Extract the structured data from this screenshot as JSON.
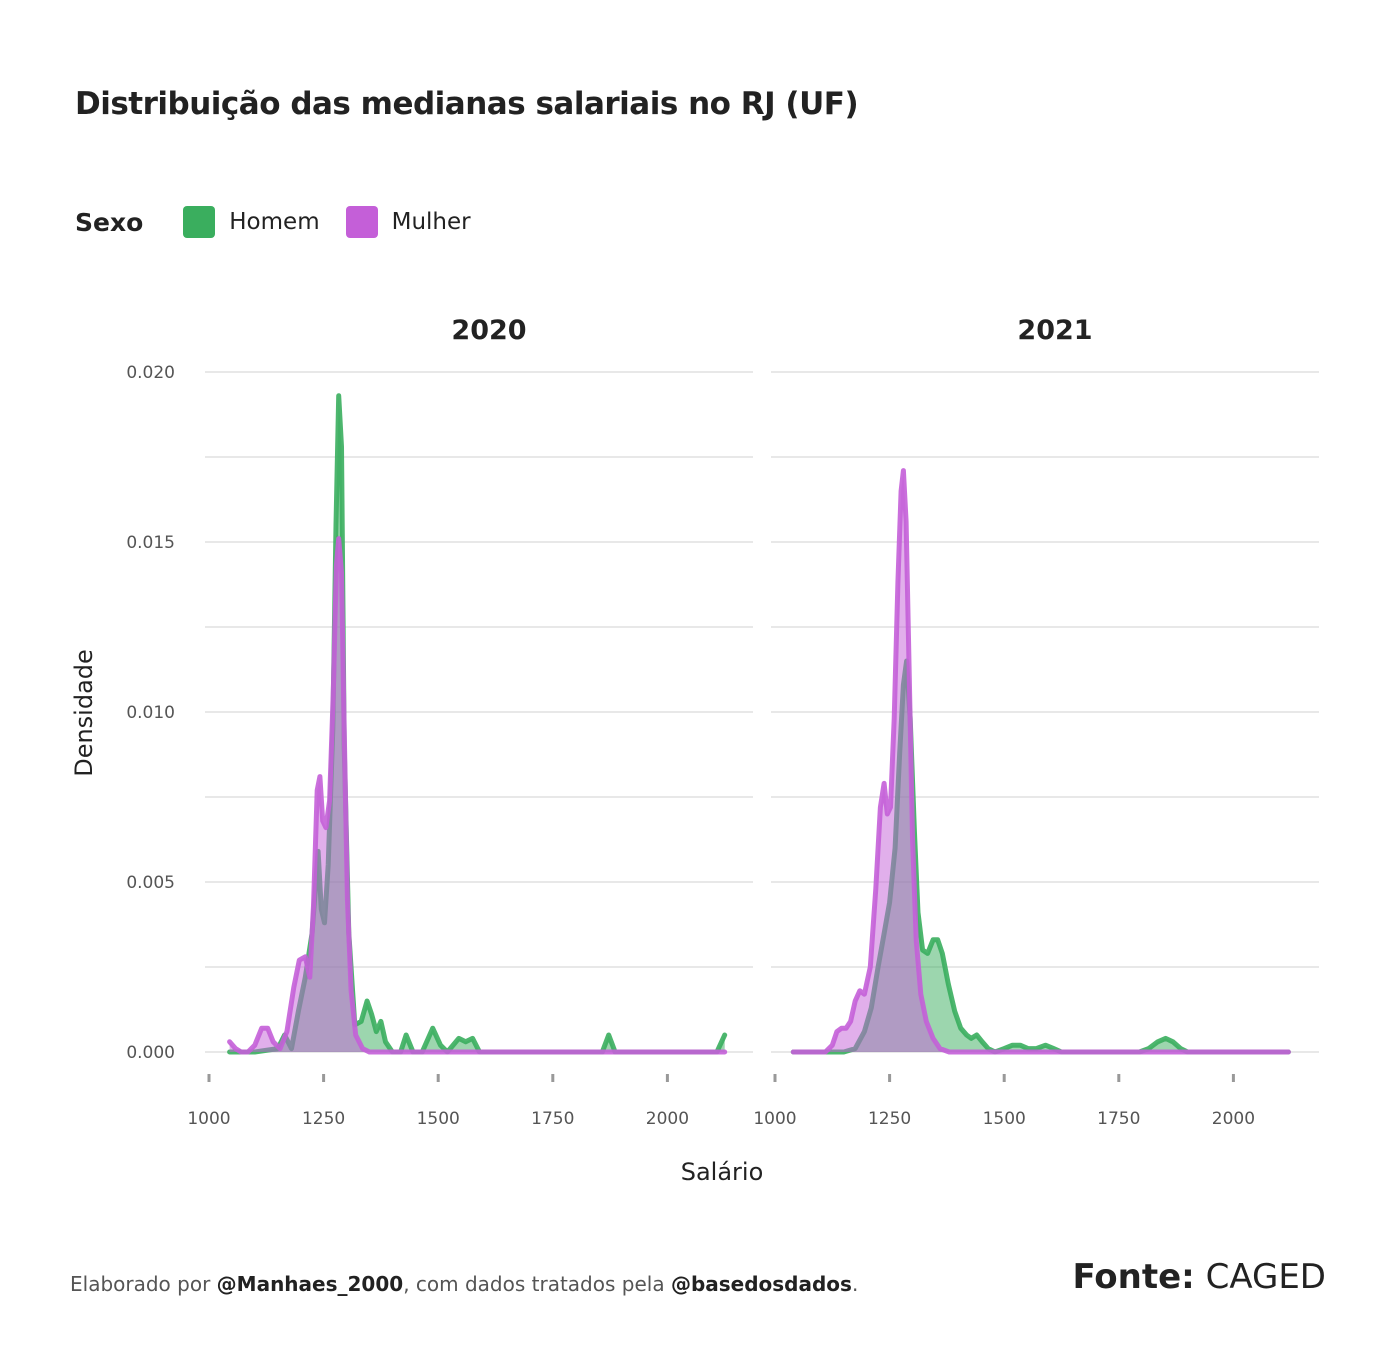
{
  "title": "Distribuição das medianas salariais no RJ (UF)",
  "legend": {
    "title": "Sexo",
    "items": [
      {
        "label": "Homem",
        "color": "#3aae5e"
      },
      {
        "label": "Mulher",
        "color": "#c45fd8"
      }
    ]
  },
  "footer": {
    "prefix": "Elaborado por ",
    "author": "@Manhaes_2000",
    "middle": ", com dados tratados pela ",
    "org": "@basedosdados",
    "suffix": ".",
    "source_label": "Fonte:",
    "source_value": "CAGED"
  },
  "chart_data": {
    "type": "area",
    "xlabel": "Salário",
    "ylabel": "Densidade",
    "xlim": [
      1000,
      2150
    ],
    "ylim": [
      0,
      0.02
    ],
    "xticks": [
      1000,
      1250,
      1500,
      1750,
      2000
    ],
    "yticks": [
      0.0,
      0.005,
      0.01,
      0.015,
      0.02
    ],
    "ytick_labels": [
      "0.000",
      "0.005",
      "0.010",
      "0.015",
      "0.020"
    ],
    "grid": true,
    "legend_position": "top-left",
    "facets": [
      {
        "title": "2020",
        "series": [
          {
            "name": "Homem",
            "color": "#3aae5e",
            "points": [
              [
                1045,
                0
              ],
              [
                1100,
                0
              ],
              [
                1150,
                0.0001
              ],
              [
                1165,
                0.0005
              ],
              [
                1180,
                0.0001
              ],
              [
                1195,
                0.0012
              ],
              [
                1210,
                0.0022
              ],
              [
                1225,
                0.0035
              ],
              [
                1238,
                0.0059
              ],
              [
                1245,
                0.0042
              ],
              [
                1252,
                0.0038
              ],
              [
                1260,
                0.0055
              ],
              [
                1270,
                0.0095
              ],
              [
                1277,
                0.0155
              ],
              [
                1283,
                0.0193
              ],
              [
                1289,
                0.0178
              ],
              [
                1295,
                0.009
              ],
              [
                1305,
                0.0035
              ],
              [
                1318,
                0.0008
              ],
              [
                1332,
                0.0009
              ],
              [
                1345,
                0.0015
              ],
              [
                1355,
                0.0011
              ],
              [
                1365,
                0.0006
              ],
              [
                1375,
                0.0009
              ],
              [
                1385,
                0.0003
              ],
              [
                1400,
                0
              ],
              [
                1418,
                0
              ],
              [
                1430,
                0.0005
              ],
              [
                1445,
                0
              ],
              [
                1465,
                0
              ],
              [
                1488,
                0.0007
              ],
              [
                1505,
                0.0002
              ],
              [
                1520,
                0
              ],
              [
                1545,
                0.0004
              ],
              [
                1560,
                0.0003
              ],
              [
                1575,
                0.0004
              ],
              [
                1590,
                0
              ],
              [
                1620,
                0
              ],
              [
                1700,
                0
              ],
              [
                1800,
                0
              ],
              [
                1858,
                0
              ],
              [
                1872,
                0.0005
              ],
              [
                1886,
                0
              ],
              [
                1950,
                0
              ],
              [
                2050,
                0
              ],
              [
                2108,
                0
              ],
              [
                2125,
                0.0005
              ]
            ]
          },
          {
            "name": "Mulher",
            "color": "#c45fd8",
            "points": [
              [
                1045,
                0.0003
              ],
              [
                1058,
                0.0001
              ],
              [
                1070,
                0
              ],
              [
                1085,
                0
              ],
              [
                1100,
                0.0002
              ],
              [
                1115,
                0.0007
              ],
              [
                1128,
                0.0007
              ],
              [
                1140,
                0.0003
              ],
              [
                1155,
                0.0001
              ],
              [
                1170,
                0.0006
              ],
              [
                1185,
                0.0019
              ],
              [
                1197,
                0.0027
              ],
              [
                1210,
                0.0028
              ],
              [
                1220,
                0.0022
              ],
              [
                1228,
                0.0043
              ],
              [
                1236,
                0.0077
              ],
              [
                1242,
                0.0081
              ],
              [
                1248,
                0.0068
              ],
              [
                1255,
                0.0066
              ],
              [
                1263,
                0.0074
              ],
              [
                1271,
                0.0105
              ],
              [
                1278,
                0.0143
              ],
              [
                1283,
                0.0151
              ],
              [
                1289,
                0.0141
              ],
              [
                1295,
                0.0095
              ],
              [
                1302,
                0.0045
              ],
              [
                1310,
                0.0018
              ],
              [
                1320,
                0.0005
              ],
              [
                1335,
                0.0001
              ],
              [
                1350,
                0
              ],
              [
                1400,
                0
              ],
              [
                1500,
                0
              ],
              [
                1600,
                0
              ],
              [
                1700,
                0
              ],
              [
                1800,
                0
              ],
              [
                1900,
                0
              ],
              [
                2000,
                0
              ],
              [
                2125,
                0
              ]
            ]
          }
        ]
      },
      {
        "title": "2021",
        "series": [
          {
            "name": "Homem",
            "color": "#3aae5e",
            "points": [
              [
                1040,
                0
              ],
              [
                1100,
                0
              ],
              [
                1150,
                0
              ],
              [
                1175,
                0.0001
              ],
              [
                1195,
                0.0006
              ],
              [
                1210,
                0.0013
              ],
              [
                1225,
                0.0025
              ],
              [
                1237,
                0.0034
              ],
              [
                1250,
                0.0044
              ],
              [
                1262,
                0.006
              ],
              [
                1272,
                0.0088
              ],
              [
                1280,
                0.0108
              ],
              [
                1287,
                0.0115
              ],
              [
                1295,
                0.0098
              ],
              [
                1304,
                0.0065
              ],
              [
                1312,
                0.0041
              ],
              [
                1322,
                0.003
              ],
              [
                1333,
                0.0029
              ],
              [
                1345,
                0.0033
              ],
              [
                1355,
                0.0033
              ],
              [
                1365,
                0.0029
              ],
              [
                1378,
                0.002
              ],
              [
                1392,
                0.0012
              ],
              [
                1405,
                0.0007
              ],
              [
                1418,
                0.0005
              ],
              [
                1428,
                0.0004
              ],
              [
                1440,
                0.0005
              ],
              [
                1452,
                0.0003
              ],
              [
                1465,
                0.0001
              ],
              [
                1480,
                0
              ],
              [
                1500,
                0.0001
              ],
              [
                1518,
                0.0002
              ],
              [
                1535,
                0.0002
              ],
              [
                1552,
                0.0001
              ],
              [
                1570,
                0.0001
              ],
              [
                1590,
                0.0002
              ],
              [
                1608,
                0.0001
              ],
              [
                1625,
                0
              ],
              [
                1650,
                0
              ],
              [
                1700,
                0
              ],
              [
                1750,
                0
              ],
              [
                1795,
                0
              ],
              [
                1815,
                0.0001
              ],
              [
                1835,
                0.0003
              ],
              [
                1852,
                0.0004
              ],
              [
                1868,
                0.0003
              ],
              [
                1885,
                0.0001
              ],
              [
                1900,
                0
              ],
              [
                1950,
                0
              ],
              [
                2000,
                0
              ],
              [
                2050,
                0
              ],
              [
                2120,
                0
              ]
            ]
          },
          {
            "name": "Mulher",
            "color": "#c45fd8",
            "points": [
              [
                1040,
                0
              ],
              [
                1080,
                0
              ],
              [
                1110,
                0
              ],
              [
                1125,
                0.0002
              ],
              [
                1135,
                0.0006
              ],
              [
                1145,
                0.0007
              ],
              [
                1155,
                0.0007
              ],
              [
                1165,
                0.0009
              ],
              [
                1175,
                0.0015
              ],
              [
                1185,
                0.0018
              ],
              [
                1195,
                0.0017
              ],
              [
                1208,
                0.0025
              ],
              [
                1220,
                0.0048
              ],
              [
                1230,
                0.0072
              ],
              [
                1238,
                0.0079
              ],
              [
                1245,
                0.007
              ],
              [
                1252,
                0.0072
              ],
              [
                1260,
                0.0098
              ],
              [
                1268,
                0.0138
              ],
              [
                1275,
                0.0165
              ],
              [
                1280,
                0.0171
              ],
              [
                1286,
                0.0156
              ],
              [
                1293,
                0.011
              ],
              [
                1300,
                0.0063
              ],
              [
                1308,
                0.0033
              ],
              [
                1318,
                0.0017
              ],
              [
                1330,
                0.0009
              ],
              [
                1345,
                0.0004
              ],
              [
                1360,
                0.0001
              ],
              [
                1380,
                0
              ],
              [
                1450,
                0
              ],
              [
                1550,
                0
              ],
              [
                1650,
                0
              ],
              [
                1750,
                0
              ],
              [
                1850,
                0
              ],
              [
                1950,
                0
              ],
              [
                2050,
                0
              ],
              [
                2120,
                0
              ]
            ]
          }
        ]
      }
    ]
  }
}
